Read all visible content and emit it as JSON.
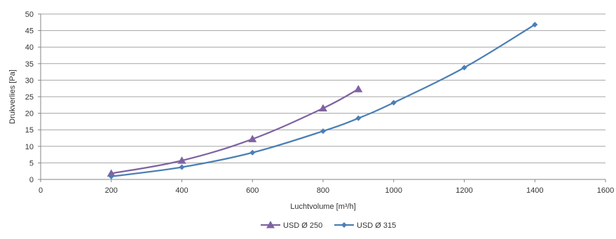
{
  "chart_data": {
    "type": "line",
    "xlabel": "Luchtvolume [m³/h]",
    "ylabel": "Drukverlies [Pa]",
    "xlim": [
      0,
      1600
    ],
    "ylim": [
      0,
      50
    ],
    "x_ticks": [
      0,
      200,
      400,
      600,
      800,
      1000,
      1200,
      1400,
      1600
    ],
    "y_ticks": [
      0,
      5,
      10,
      15,
      20,
      25,
      30,
      35,
      40,
      45,
      50
    ],
    "grid": "horizontal",
    "legend_position": "bottom",
    "series": [
      {
        "name": "USD Ø 250",
        "color": "#7f63a1",
        "marker": "triangle",
        "x": [
          200,
          400,
          600,
          800,
          900
        ],
        "y": [
          1.8,
          5.7,
          12.2,
          21.5,
          27.3
        ]
      },
      {
        "name": "USD Ø 315",
        "color": "#4a7fb5",
        "marker": "diamond",
        "x": [
          200,
          400,
          600,
          800,
          900,
          1000,
          1200,
          1400
        ],
        "y": [
          0.9,
          3.7,
          8.1,
          14.6,
          18.5,
          23.2,
          33.8,
          46.8
        ]
      }
    ]
  }
}
